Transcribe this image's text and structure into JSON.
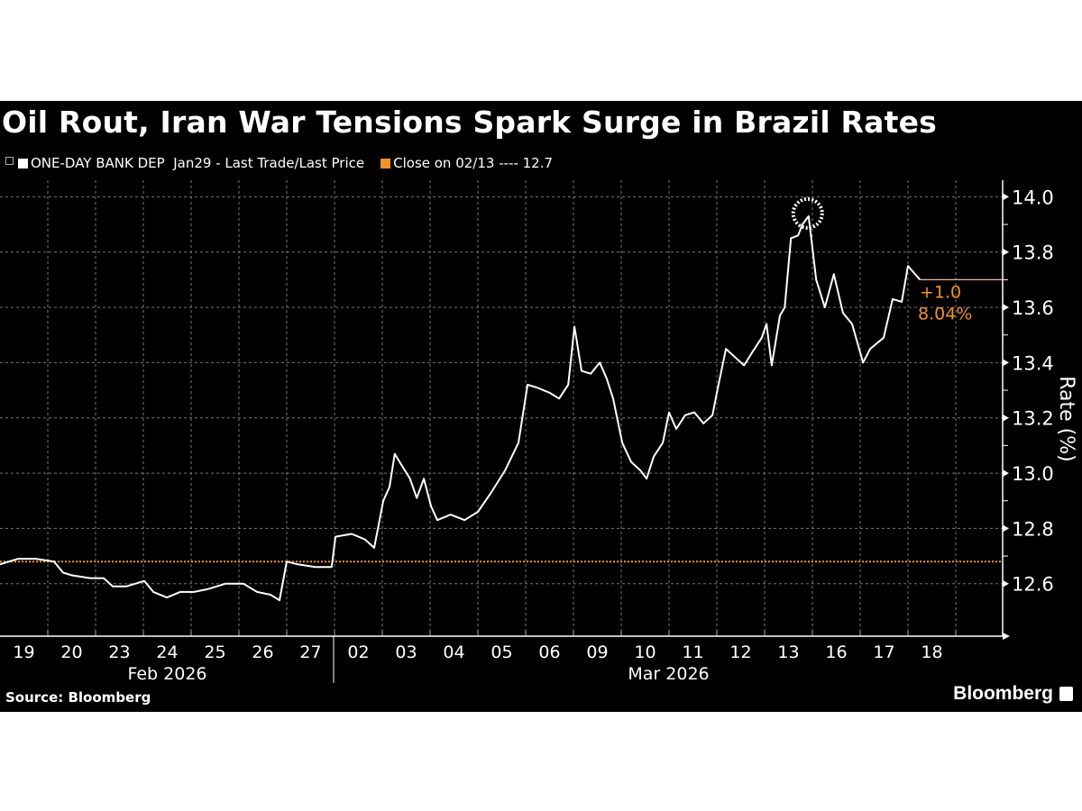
{
  "title": "Oil Rout, Iran War Tensions Spark Surge in Brazil Rates",
  "legend": {
    "icon": "collapse-box-icon",
    "series_label": "ONE-DAY BANK DEP  Jan29 - Last Trade/Last Price",
    "series_color": "#ffffff",
    "close_label": "Close on 02/13 ---- 12.7",
    "close_color": "#f0932b"
  },
  "source": "Source: Bloomberg",
  "brand": "Bloomberg",
  "chart_data": {
    "type": "line",
    "title": "Oil Rout, Iran War Tensions Spark Surge in Brazil Rates",
    "ylabel": "Rate (%)",
    "ylim": [
      12.41,
      14.06
    ],
    "yticks": [
      "12.6",
      "12.8",
      "13.0",
      "13.2",
      "13.4",
      "13.6",
      "13.8",
      "14.0"
    ],
    "categories": [
      "19",
      "20",
      "23",
      "24",
      "25",
      "26",
      "27",
      "02",
      "03",
      "04",
      "05",
      "06",
      "09",
      "10",
      "11",
      "12",
      "13",
      "16",
      "17",
      "18"
    ],
    "months": [
      {
        "label": "Feb 2026",
        "from": 0,
        "to": 7
      },
      {
        "label": "Mar 2026",
        "from": 7,
        "to": 21
      }
    ],
    "grid": true,
    "reference_line": {
      "label": "Close on 02/13",
      "value": 12.68,
      "color": "#f0932b"
    },
    "last_value": 13.7,
    "change_label": "+1.0",
    "change_pct_label": "8.04%",
    "change_color": "#f0932b",
    "peak_marker": {
      "x": 16.92,
      "y": 13.93
    },
    "series": [
      {
        "color": "#ffffff",
        "points": [
          [
            0,
            12.67
          ],
          [
            0.38,
            12.69
          ],
          [
            0.75,
            12.69
          ],
          [
            1.13,
            12.68
          ],
          [
            1.32,
            12.64
          ],
          [
            1.51,
            12.63
          ],
          [
            1.89,
            12.62
          ],
          [
            2.17,
            12.62
          ],
          [
            2.36,
            12.59
          ],
          [
            2.64,
            12.59
          ],
          [
            3.02,
            12.61
          ],
          [
            3.21,
            12.57
          ],
          [
            3.49,
            12.55
          ],
          [
            3.77,
            12.57
          ],
          [
            4.06,
            12.57
          ],
          [
            4.34,
            12.58
          ],
          [
            4.72,
            12.6
          ],
          [
            5.09,
            12.6
          ],
          [
            5.38,
            12.57
          ],
          [
            5.66,
            12.56
          ],
          [
            5.85,
            12.54
          ],
          [
            6.0,
            12.68
          ],
          [
            6.23,
            12.67
          ],
          [
            6.6,
            12.66
          ],
          [
            6.94,
            12.66
          ],
          [
            7.02,
            12.77
          ],
          [
            7.36,
            12.78
          ],
          [
            7.64,
            12.76
          ],
          [
            7.83,
            12.73
          ],
          [
            8.02,
            12.9
          ],
          [
            8.15,
            12.95
          ],
          [
            8.26,
            13.07
          ],
          [
            8.4,
            13.03
          ],
          [
            8.58,
            12.98
          ],
          [
            8.72,
            12.91
          ],
          [
            8.87,
            12.98
          ],
          [
            9.02,
            12.88
          ],
          [
            9.15,
            12.83
          ],
          [
            9.43,
            12.85
          ],
          [
            9.72,
            12.83
          ],
          [
            10,
            12.86
          ],
          [
            10.28,
            12.93
          ],
          [
            10.57,
            13.01
          ],
          [
            10.85,
            13.11
          ],
          [
            11.04,
            13.32
          ],
          [
            11.23,
            13.31
          ],
          [
            11.51,
            13.29
          ],
          [
            11.7,
            13.27
          ],
          [
            11.89,
            13.32
          ],
          [
            12.02,
            13.53
          ],
          [
            12.17,
            13.37
          ],
          [
            12.36,
            13.36
          ],
          [
            12.55,
            13.4
          ],
          [
            12.7,
            13.34
          ],
          [
            12.83,
            13.27
          ],
          [
            13.02,
            13.11
          ],
          [
            13.21,
            13.04
          ],
          [
            13.4,
            13.01
          ],
          [
            13.53,
            12.98
          ],
          [
            13.68,
            13.06
          ],
          [
            13.87,
            13.11
          ],
          [
            14,
            13.22
          ],
          [
            14.15,
            13.16
          ],
          [
            14.34,
            13.21
          ],
          [
            14.53,
            13.22
          ],
          [
            14.72,
            13.18
          ],
          [
            14.91,
            13.21
          ],
          [
            15,
            13.29
          ],
          [
            15.19,
            13.45
          ],
          [
            15.38,
            13.42
          ],
          [
            15.57,
            13.39
          ],
          [
            15.75,
            13.44
          ],
          [
            15.94,
            13.49
          ],
          [
            16.04,
            13.54
          ],
          [
            16.15,
            13.39
          ],
          [
            16.32,
            13.57
          ],
          [
            16.42,
            13.6
          ],
          [
            16.55,
            13.85
          ],
          [
            16.7,
            13.86
          ],
          [
            16.79,
            13.9
          ],
          [
            16.92,
            13.93
          ],
          [
            17.08,
            13.7
          ],
          [
            17.26,
            13.6
          ],
          [
            17.45,
            13.72
          ],
          [
            17.64,
            13.58
          ],
          [
            17.83,
            13.54
          ],
          [
            18.06,
            13.4
          ],
          [
            18.21,
            13.45
          ],
          [
            18.49,
            13.49
          ],
          [
            18.68,
            13.63
          ],
          [
            18.87,
            13.62
          ],
          [
            19,
            13.75
          ],
          [
            19.25,
            13.7
          ]
        ]
      }
    ]
  }
}
